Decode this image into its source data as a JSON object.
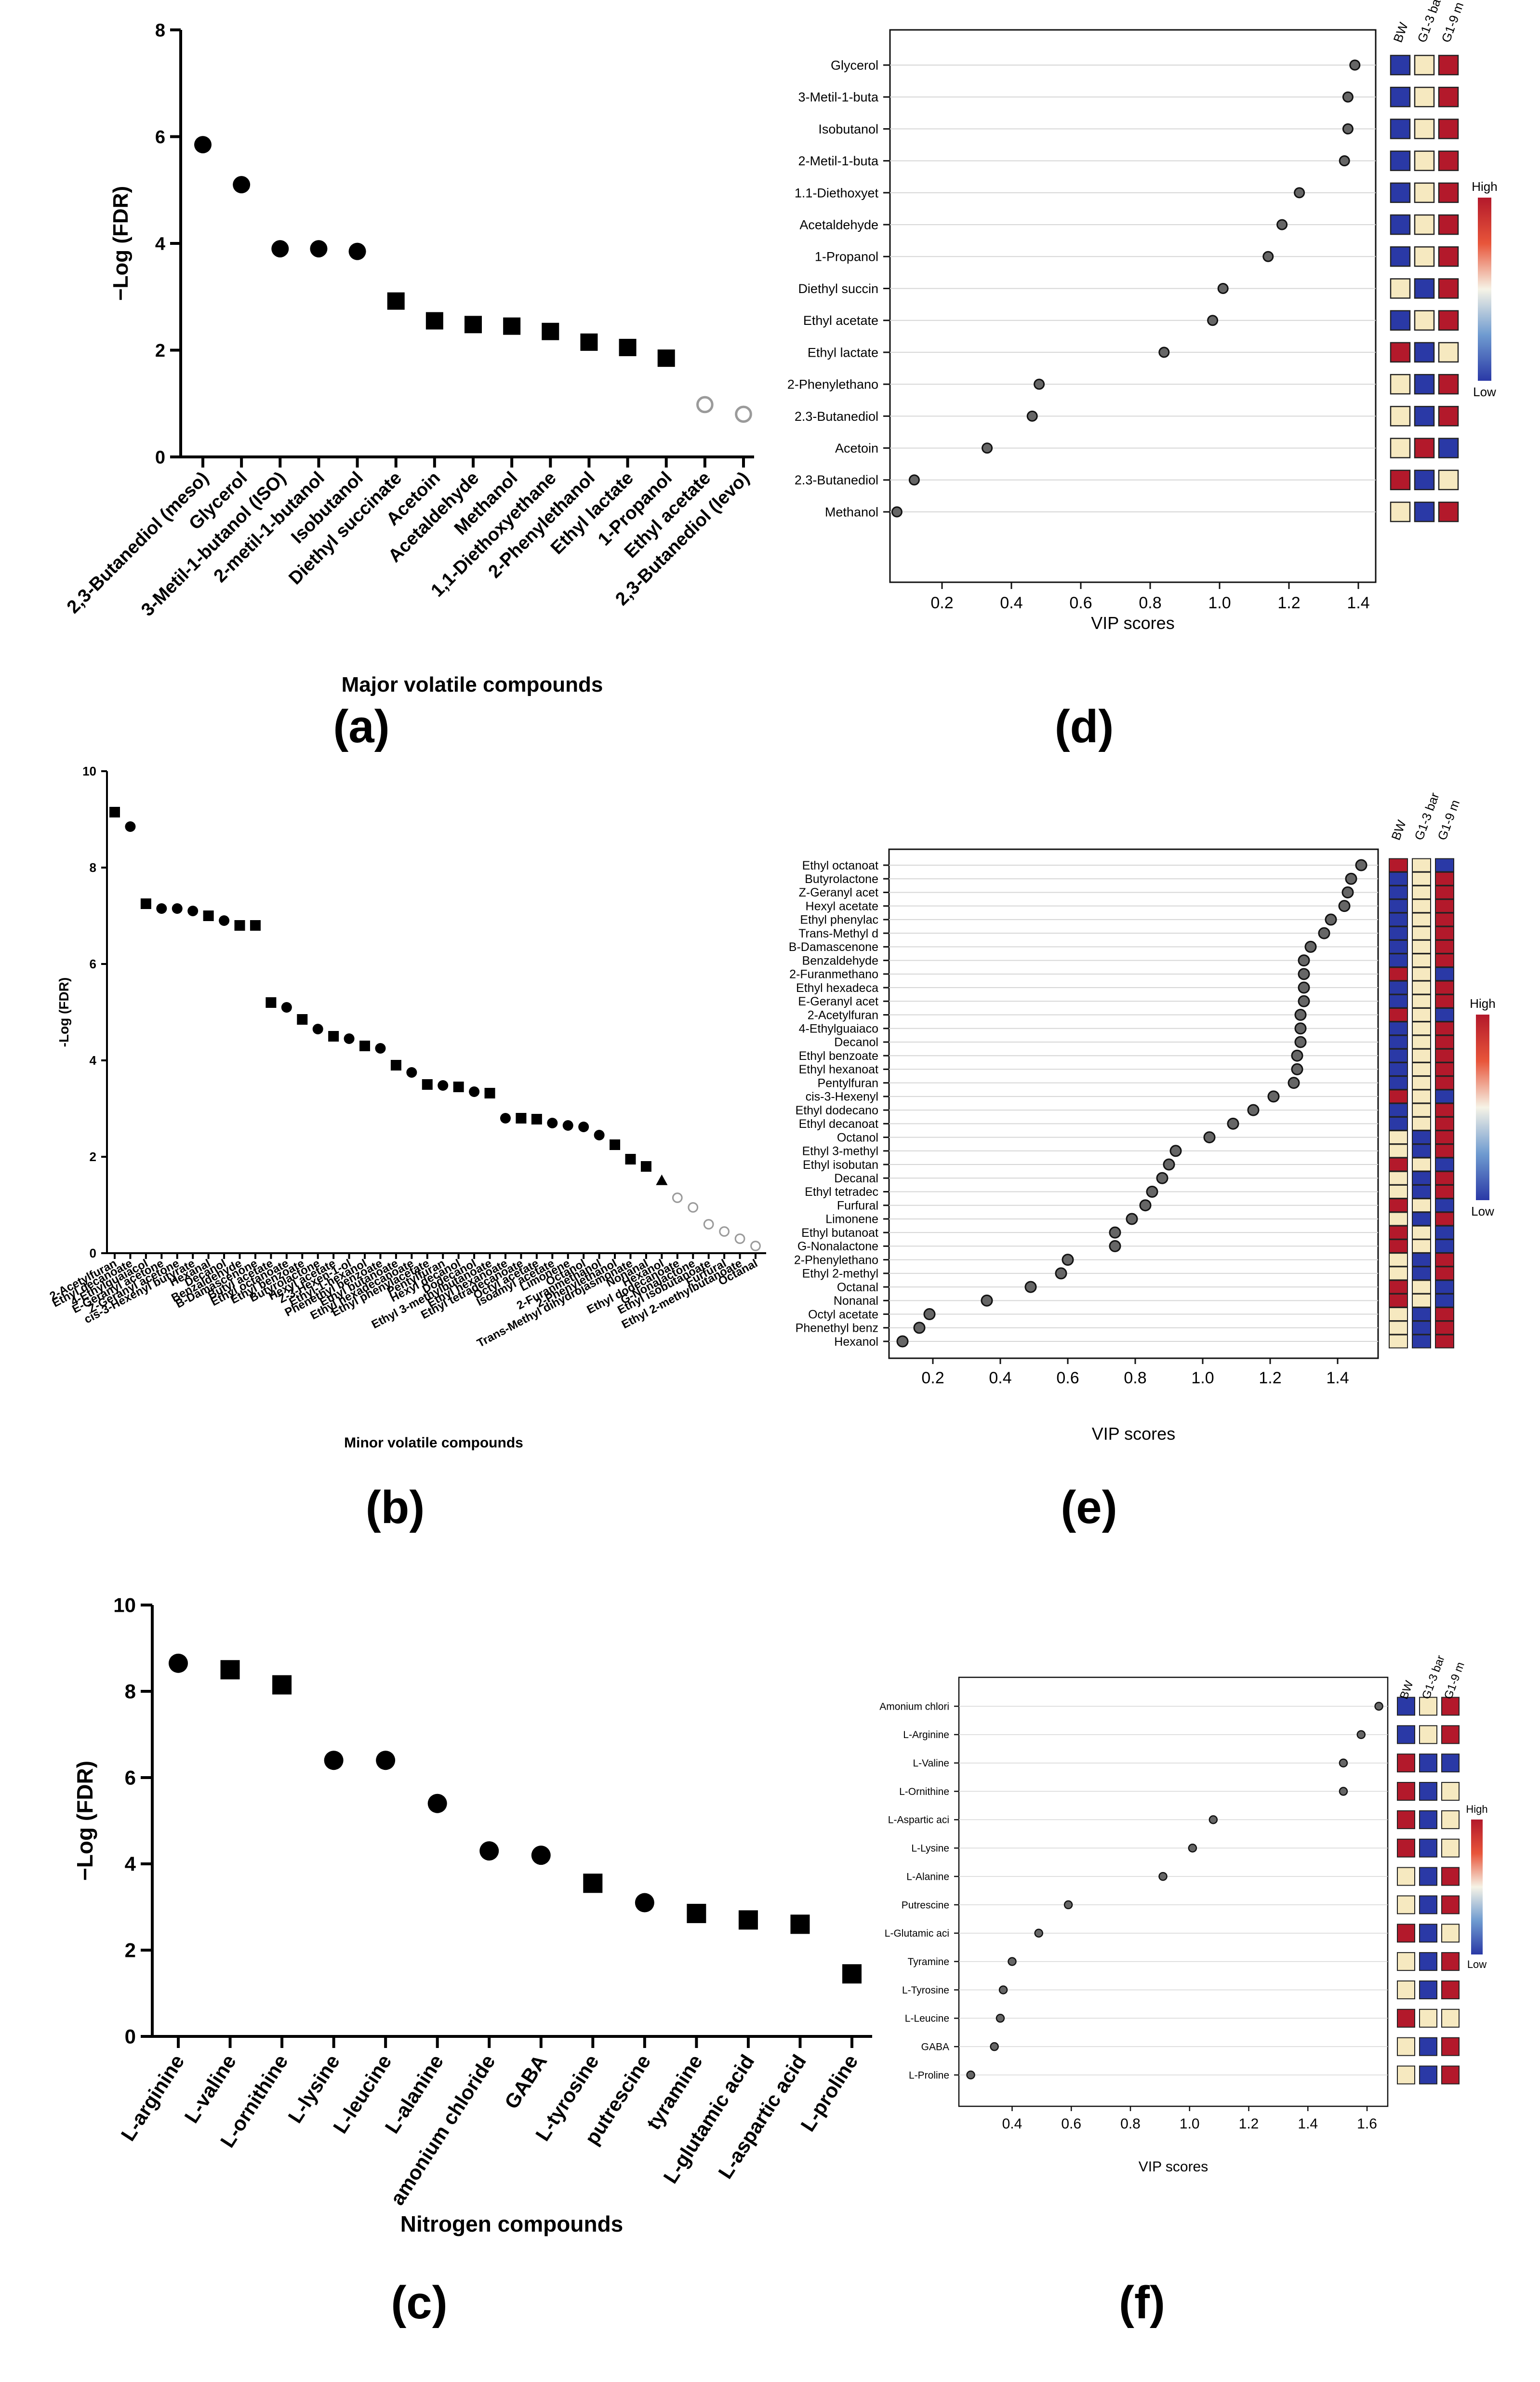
{
  "panel_labels": [
    "(a)",
    "(b)",
    "(c)",
    "(d)",
    "(e)",
    "(f)"
  ],
  "vip_xlabel": "VIP scores",
  "heat_columns": [
    "BW",
    "G1-3 bar",
    "G1-9 m"
  ],
  "scale": {
    "high": "High",
    "low": "Low"
  },
  "colors": {
    "low": "#2a39a6",
    "mid": "#f6e9c0",
    "high": "#b3192b",
    "filled": "#000000",
    "hollow": "#9a9a9a",
    "dot": "#666666"
  },
  "chart_data": [
    {
      "id": "a",
      "type": "scatter",
      "title": "",
      "xlabel": "Major volatile compounds",
      "ylabel": "−Log (FDR)",
      "ylim": [
        0,
        8
      ],
      "yticks": [
        "0",
        "2",
        "4",
        "6",
        "8"
      ],
      "categories": [
        "2,3-Butanediol (meso)",
        "Glycerol",
        "3-Metil-1-butanol (ISO)",
        "2-metil-1-butanol",
        "Isobutanol",
        "Diethyl succinate",
        "Acetoin",
        "Acetaldehyde",
        "Methanol",
        "1,1-Diethoxyethane",
        "2-Phenylethanol",
        "Ethyl lactate",
        "1-Propanol",
        "Ethyl acetate",
        "2,3-Butanediol (levo)"
      ],
      "values": [
        5.85,
        5.1,
        3.9,
        3.9,
        3.85,
        2.92,
        2.55,
        2.48,
        2.45,
        2.35,
        2.15,
        2.05,
        1.85,
        0.98,
        0.8
      ],
      "markers": [
        "circle",
        "circle",
        "circle",
        "circle",
        "circle",
        "square",
        "square",
        "square",
        "square",
        "square",
        "square",
        "square",
        "square",
        "open",
        "open"
      ]
    },
    {
      "id": "b",
      "type": "scatter",
      "title": "",
      "xlabel": "Minor volatile compounds",
      "ylabel": "-Log (FDR)",
      "ylim": [
        0,
        10
      ],
      "yticks": [
        "0",
        "2",
        "4",
        "6",
        "8",
        "10"
      ],
      "categories": [
        "2-Acetylfuran",
        "Ethyl decanoate",
        "4-Ethylguaiacol",
        "E-Geranyl acetone",
        "Z-Geranyl acetone",
        "cis-3-Hexenyl butyrate",
        "Hexanal",
        "Decanol",
        "Benzaldehyde",
        "B-Damascenone",
        "Butyl acetate",
        "Ethyl octanoate",
        "Ethyl benzoate",
        "Butyrolactone",
        "Hexyl acetate",
        "Z-3-Hexen-1-ol",
        "Ethyl-1-hexanol",
        "Phenethyl benzoate",
        "Ethyl butanoate",
        "Ethyl hexadecanoate",
        "Ethyl phenylacetate",
        "Pentylfuran",
        "Hexyl decanol",
        "Dodecanol",
        "Ethyl 3-methylbutanoate",
        "Ethyl hexanoate",
        "Ethyl tetradecanoate",
        "Octyl acetate",
        "Isoamyl acetate",
        "Limonene",
        "Octanol",
        "2-Furanmethanol",
        "2-Phenylethanol",
        "Trans-Methyl dihydrojasmonate",
        "Nonanal",
        "Hexanol",
        "Ethyl dodecanoate",
        "G-Nonalactone",
        "Ethyl isobutanoate",
        "Furfural",
        "Ethyl 2-methylbutanoate",
        "Octanal"
      ],
      "values": [
        9.15,
        8.85,
        7.25,
        7.15,
        7.15,
        7.1,
        7.0,
        6.9,
        6.8,
        6.8,
        5.2,
        5.1,
        4.85,
        4.65,
        4.5,
        4.45,
        4.3,
        4.25,
        3.9,
        3.75,
        3.5,
        3.48,
        3.45,
        3.35,
        3.32,
        2.8,
        2.8,
        2.78,
        2.7,
        2.65,
        2.62,
        2.45,
        2.25,
        1.95,
        1.8,
        1.5,
        1.15,
        0.95,
        0.6,
        0.45,
        0.3,
        0.15
      ],
      "markers": [
        "square",
        "circle",
        "square",
        "circle",
        "circle",
        "circle",
        "square",
        "circle",
        "square",
        "square",
        "square",
        "circle",
        "square",
        "circle",
        "square",
        "circle",
        "square",
        "circle",
        "square",
        "circle",
        "square",
        "circle",
        "square",
        "circle",
        "square",
        "circle",
        "square",
        "square",
        "circle",
        "circle",
        "circle",
        "circle",
        "square",
        "square",
        "square",
        "triangle",
        "open",
        "open",
        "open",
        "open",
        "open",
        "open"
      ]
    },
    {
      "id": "c",
      "type": "scatter",
      "title": "",
      "xlabel": "Nitrogen compounds",
      "ylabel": "−Log (FDR)",
      "ylim": [
        0,
        10
      ],
      "yticks": [
        "0",
        "2",
        "4",
        "6",
        "8",
        "10"
      ],
      "categories": [
        "L-arginine",
        "L-valine",
        "L-ornithine",
        "L-lysine",
        "L-leucine",
        "L-alanine",
        "amonium chloride",
        "GABA",
        "L-tyrosine",
        "putrescine",
        "tyramine",
        "L-glutamic acid",
        "L-aspartic acid",
        "L-proline"
      ],
      "values": [
        8.65,
        8.5,
        8.15,
        6.4,
        6.4,
        5.4,
        4.3,
        4.2,
        3.55,
        3.1,
        2.85,
        2.7,
        2.6,
        1.45
      ],
      "markers": [
        "circle",
        "square",
        "square",
        "circle",
        "circle",
        "circle",
        "circle",
        "circle",
        "square",
        "circle",
        "square",
        "square",
        "square",
        "square"
      ]
    },
    {
      "id": "d",
      "type": "scatter",
      "title": "",
      "xlabel": "VIP scores",
      "ylabel": "",
      "xlim": [
        0.05,
        1.45
      ],
      "xticks": [
        0.2,
        0.4,
        0.6,
        0.8,
        1.0,
        1.2,
        1.4
      ],
      "xtick_labels": [
        "0.2",
        "0.4",
        "0.6",
        "0.8",
        "1.0",
        "1.2",
        "1.4"
      ],
      "categories": [
        "Glycerol",
        "3-Metil-1-buta",
        "Isobutanol",
        "2-Metil-1-buta",
        "1.1-Diethoxyet",
        "Acetaldehyde",
        "1-Propanol",
        "Diethyl succin",
        "Ethyl acetate",
        "Ethyl lactate",
        "2-Phenylethano",
        "2.3-Butanediol",
        "Acetoin",
        "2.3-Butanediol",
        "Methanol"
      ],
      "values": [
        1.39,
        1.37,
        1.37,
        1.36,
        1.23,
        1.18,
        1.14,
        1.01,
        0.98,
        0.84,
        0.48,
        0.46,
        0.33,
        0.12,
        0.07
      ],
      "heatmap": [
        [
          0,
          1,
          2
        ],
        [
          0,
          1,
          2
        ],
        [
          0,
          1,
          2
        ],
        [
          0,
          1,
          2
        ],
        [
          0,
          1,
          2
        ],
        [
          0,
          1,
          2
        ],
        [
          0,
          1,
          2
        ],
        [
          1,
          0,
          2
        ],
        [
          0,
          1,
          2
        ],
        [
          2,
          0,
          1
        ],
        [
          1,
          0,
          2
        ],
        [
          1,
          0,
          2
        ],
        [
          1,
          2,
          0
        ],
        [
          2,
          0,
          1
        ],
        [
          1,
          0,
          2
        ]
      ]
    },
    {
      "id": "e",
      "type": "scatter",
      "title": "",
      "xlabel": "VIP scores",
      "ylabel": "",
      "xlim": [
        0.07,
        1.52
      ],
      "xticks": [
        0.2,
        0.4,
        0.6,
        0.8,
        1.0,
        1.2,
        1.4
      ],
      "xtick_labels": [
        "0.2",
        "0.4",
        "0.6",
        "0.8",
        "1.0",
        "1.2",
        "1.4"
      ],
      "categories": [
        "Ethyl octanoat",
        "Butyrolactone",
        "Z-Geranyl acet",
        "Hexyl acetate",
        "Ethyl phenylac",
        "Trans-Methyl d",
        "B-Damascenone",
        "Benzaldehyde",
        "2-Furanmethano",
        "Ethyl hexadeca",
        "E-Geranyl acet",
        "2-Acetylfuran",
        "4-Ethylguaiaco",
        "Decanol",
        "Ethyl benzoate",
        "Ethyl hexanoat",
        "Pentylfuran",
        "cis-3-Hexenyl",
        "Ethyl dodecano",
        "Ethyl decanoat",
        "Octanol",
        "Ethyl 3-methyl",
        "Ethyl isobutan",
        "Decanal",
        "Ethyl tetradec",
        "Furfural",
        "Limonene",
        "Ethyl butanoat",
        "G-Nonalactone",
        "2-Phenylethano",
        "Ethyl 2-methyl",
        "Octanal",
        "Nonanal",
        "Octyl acetate",
        "Phenethyl benz",
        "Hexanol"
      ],
      "values": [
        1.47,
        1.44,
        1.43,
        1.42,
        1.38,
        1.36,
        1.32,
        1.3,
        1.3,
        1.3,
        1.3,
        1.29,
        1.29,
        1.29,
        1.28,
        1.28,
        1.27,
        1.21,
        1.15,
        1.09,
        1.02,
        0.92,
        0.9,
        0.88,
        0.85,
        0.83,
        0.79,
        0.74,
        0.74,
        0.6,
        0.58,
        0.49,
        0.36,
        0.19,
        0.16,
        0.11
      ],
      "heatmap": [
        [
          2,
          1,
          0
        ],
        [
          0,
          1,
          2
        ],
        [
          0,
          1,
          2
        ],
        [
          0,
          1,
          2
        ],
        [
          0,
          1,
          2
        ],
        [
          0,
          1,
          2
        ],
        [
          0,
          1,
          2
        ],
        [
          0,
          1,
          2
        ],
        [
          2,
          1,
          0
        ],
        [
          0,
          1,
          2
        ],
        [
          0,
          1,
          2
        ],
        [
          2,
          1,
          0
        ],
        [
          0,
          1,
          2
        ],
        [
          0,
          1,
          2
        ],
        [
          0,
          1,
          2
        ],
        [
          0,
          1,
          2
        ],
        [
          0,
          1,
          2
        ],
        [
          2,
          1,
          0
        ],
        [
          0,
          1,
          2
        ],
        [
          0,
          1,
          2
        ],
        [
          1,
          0,
          2
        ],
        [
          1,
          0,
          2
        ],
        [
          2,
          1,
          0
        ],
        [
          1,
          0,
          2
        ],
        [
          1,
          0,
          2
        ],
        [
          2,
          1,
          0
        ],
        [
          1,
          0,
          2
        ],
        [
          2,
          1,
          0
        ],
        [
          2,
          1,
          0
        ],
        [
          1,
          0,
          2
        ],
        [
          1,
          0,
          2
        ],
        [
          2,
          1,
          0
        ],
        [
          2,
          1,
          0
        ],
        [
          1,
          0,
          2
        ],
        [
          1,
          0,
          2
        ],
        [
          1,
          0,
          2
        ]
      ]
    },
    {
      "id": "f",
      "type": "scatter",
      "title": "",
      "xlabel": "VIP scores",
      "ylabel": "",
      "xlim": [
        0.22,
        1.67
      ],
      "xticks": [
        0.4,
        0.6,
        0.8,
        1.0,
        1.2,
        1.4,
        1.6
      ],
      "xtick_labels": [
        "0.4",
        "0.6",
        "0.8",
        "1.0",
        "1.2",
        "1.4",
        "1.6"
      ],
      "categories": [
        "Amonium chlori",
        "L-Arginine",
        "L-Valine",
        "L-Ornithine",
        "L-Aspartic aci",
        "L-Lysine",
        "L-Alanine",
        "Putrescine",
        "L-Glutamic aci",
        "Tyramine",
        "L-Tyrosine",
        "L-Leucine",
        "GABA",
        "L-Proline"
      ],
      "values": [
        1.64,
        1.58,
        1.52,
        1.52,
        1.08,
        1.01,
        0.91,
        0.59,
        0.49,
        0.4,
        0.37,
        0.36,
        0.34,
        0.26
      ],
      "heatmap": [
        [
          0,
          1,
          2
        ],
        [
          0,
          1,
          2
        ],
        [
          2,
          0,
          0
        ],
        [
          2,
          0,
          1
        ],
        [
          2,
          0,
          1
        ],
        [
          2,
          0,
          1
        ],
        [
          1,
          0,
          2
        ],
        [
          1,
          0,
          2
        ],
        [
          2,
          0,
          1
        ],
        [
          1,
          0,
          2
        ],
        [
          1,
          0,
          2
        ],
        [
          2,
          1,
          1
        ],
        [
          1,
          0,
          2
        ],
        [
          1,
          0,
          2
        ]
      ]
    }
  ]
}
